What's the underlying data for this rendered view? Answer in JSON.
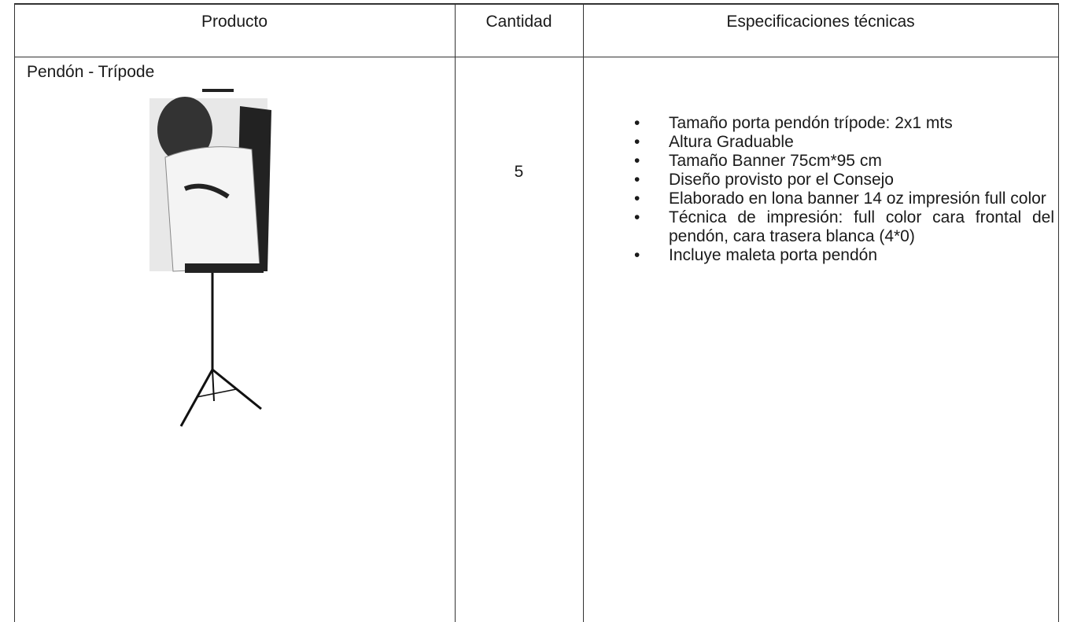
{
  "table": {
    "headers": [
      "Producto",
      "Cantidad",
      "Especificaciones técnicas"
    ],
    "rows": [
      {
        "product": "Pendón - Trípode",
        "quantity": "5",
        "specs": [
          "Tamaño porta pendón trípode: 2x1 mts",
          "Altura Graduable",
          "Tamaño Banner 75cm*95 cm",
          "Diseño provisto por el Consejo",
          "Elaborado en lona banner 14 oz impresión full color",
          "Técnica de impresión: full color cara frontal del pendón, cara trasera blanca (4*0)",
          "Incluye maleta porta pendón"
        ]
      }
    ]
  }
}
